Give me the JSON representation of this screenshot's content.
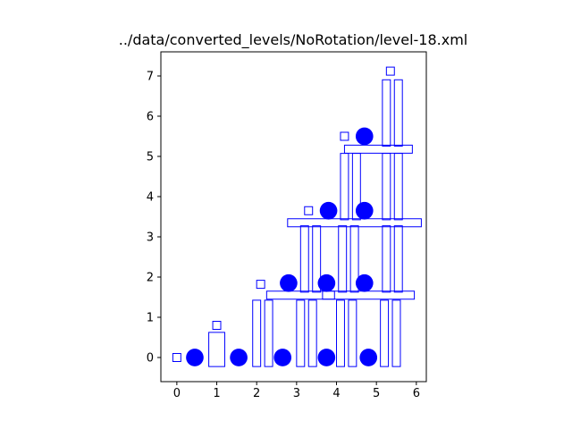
{
  "chart_data": {
    "type": "scatter",
    "title": "../data/converted_levels/NoRotation/level-18.xml",
    "xlabel": "",
    "ylabel": "",
    "xlim": [
      -0.4,
      6.25
    ],
    "ylim": [
      -0.6,
      7.6
    ],
    "xticks": [
      0,
      1,
      2,
      3,
      4,
      5,
      6
    ],
    "yticks": [
      0,
      1,
      2,
      3,
      4,
      5,
      6,
      7
    ],
    "grid": false,
    "color": "#0000ff",
    "circles": [
      {
        "x": 0.45,
        "y": 0.0,
        "r": 0.22
      },
      {
        "x": 1.55,
        "y": 0.0,
        "r": 0.22
      },
      {
        "x": 2.65,
        "y": 0.0,
        "r": 0.22
      },
      {
        "x": 3.75,
        "y": 0.0,
        "r": 0.22
      },
      {
        "x": 4.8,
        "y": 0.0,
        "r": 0.22
      },
      {
        "x": 2.8,
        "y": 1.85,
        "r": 0.22
      },
      {
        "x": 3.75,
        "y": 1.85,
        "r": 0.22
      },
      {
        "x": 4.7,
        "y": 1.85,
        "r": 0.22
      },
      {
        "x": 3.8,
        "y": 3.65,
        "r": 0.22
      },
      {
        "x": 4.7,
        "y": 3.65,
        "r": 0.22
      },
      {
        "x": 4.7,
        "y": 5.5,
        "r": 0.22
      }
    ],
    "rectangles": [
      {
        "x": 0.0,
        "y": 0.0,
        "w": 0.2,
        "h": 0.2
      },
      {
        "x": 1.0,
        "y": 0.8,
        "w": 0.2,
        "h": 0.2
      },
      {
        "x": 2.1,
        "y": 1.82,
        "w": 0.2,
        "h": 0.2
      },
      {
        "x": 3.3,
        "y": 3.65,
        "w": 0.2,
        "h": 0.2
      },
      {
        "x": 4.2,
        "y": 5.5,
        "w": 0.2,
        "h": 0.2
      },
      {
        "x": 5.35,
        "y": 7.12,
        "w": 0.2,
        "h": 0.2
      },
      {
        "x": 1.0,
        "y": 0.2,
        "w": 0.4,
        "h": 0.85
      },
      {
        "x": 2.0,
        "y": 0.6,
        "w": 0.2,
        "h": 1.65
      },
      {
        "x": 2.3,
        "y": 0.6,
        "w": 0.2,
        "h": 1.65
      },
      {
        "x": 3.1,
        "y": 0.6,
        "w": 0.2,
        "h": 1.65
      },
      {
        "x": 3.4,
        "y": 0.6,
        "w": 0.2,
        "h": 1.65
      },
      {
        "x": 4.1,
        "y": 0.6,
        "w": 0.2,
        "h": 1.65
      },
      {
        "x": 4.4,
        "y": 0.6,
        "w": 0.2,
        "h": 1.65
      },
      {
        "x": 5.2,
        "y": 0.6,
        "w": 0.2,
        "h": 1.65
      },
      {
        "x": 5.5,
        "y": 0.6,
        "w": 0.2,
        "h": 1.65
      },
      {
        "x": 3.1,
        "y": 1.55,
        "w": 1.7,
        "h": 0.2
      },
      {
        "x": 4.8,
        "y": 1.55,
        "w": 2.3,
        "h": 0.2
      },
      {
        "x": 3.2,
        "y": 2.45,
        "w": 0.2,
        "h": 1.65
      },
      {
        "x": 3.5,
        "y": 2.45,
        "w": 0.2,
        "h": 1.65
      },
      {
        "x": 4.15,
        "y": 2.45,
        "w": 0.2,
        "h": 1.65
      },
      {
        "x": 4.45,
        "y": 2.45,
        "w": 0.2,
        "h": 1.65
      },
      {
        "x": 5.25,
        "y": 2.45,
        "w": 0.2,
        "h": 1.65
      },
      {
        "x": 5.55,
        "y": 2.45,
        "w": 0.2,
        "h": 1.65
      },
      {
        "x": 4.45,
        "y": 3.35,
        "w": 3.35,
        "h": 0.2
      },
      {
        "x": 4.2,
        "y": 4.25,
        "w": 0.2,
        "h": 1.65
      },
      {
        "x": 4.5,
        "y": 4.25,
        "w": 0.2,
        "h": 1.65
      },
      {
        "x": 5.25,
        "y": 4.25,
        "w": 0.2,
        "h": 1.65
      },
      {
        "x": 5.55,
        "y": 4.25,
        "w": 0.2,
        "h": 1.65
      },
      {
        "x": 5.05,
        "y": 5.18,
        "w": 1.7,
        "h": 0.2
      },
      {
        "x": 5.25,
        "y": 6.08,
        "w": 0.2,
        "h": 1.65
      },
      {
        "x": 5.55,
        "y": 6.08,
        "w": 0.2,
        "h": 1.65
      }
    ]
  }
}
